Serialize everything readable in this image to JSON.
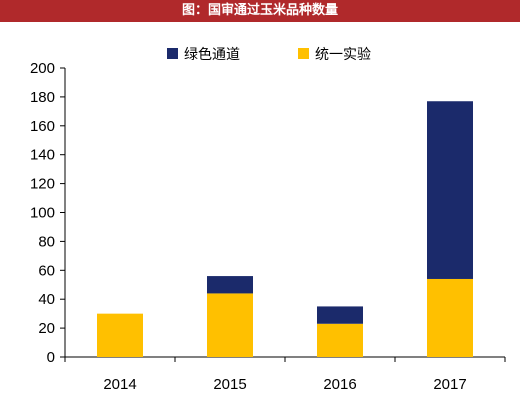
{
  "header": {
    "title": "图：国审通过玉米品种数量"
  },
  "colors": {
    "title_bar": "#b0292b",
    "navy": "#1b2a6b",
    "gold": "#ffc000",
    "axis": "#000000"
  },
  "chart_data": {
    "type": "bar",
    "stacked": true,
    "title": "图：国审通过玉米品种数量",
    "xlabel": "",
    "ylabel": "",
    "categories": [
      "2014",
      "2015",
      "2016",
      "2017"
    ],
    "series": [
      {
        "name": "统一实验",
        "color": "#ffc000",
        "values": [
          30,
          44,
          23,
          54
        ]
      },
      {
        "name": "绿色通道",
        "color": "#1b2a6b",
        "values": [
          0,
          12,
          12,
          123
        ]
      }
    ],
    "ylim": [
      0,
      200
    ],
    "yticks": [
      0,
      20,
      40,
      60,
      80,
      100,
      120,
      140,
      160,
      180,
      200
    ],
    "legend": {
      "placement": "top",
      "order": [
        "绿色通道",
        "统一实验"
      ]
    },
    "grid": false
  }
}
